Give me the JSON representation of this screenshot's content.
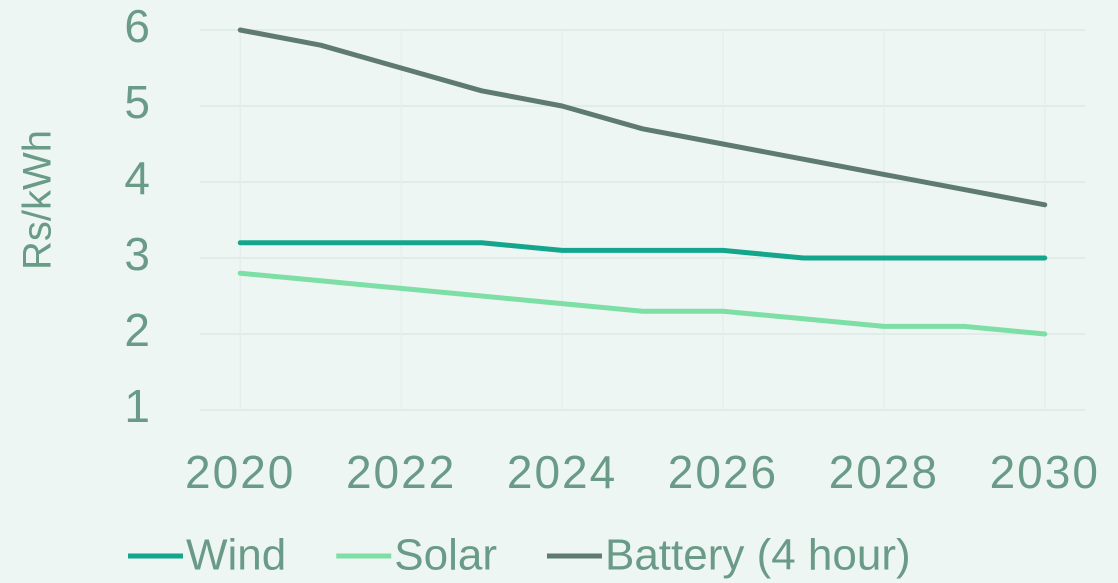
{
  "chart_data": {
    "type": "line",
    "y_label": "Rs/kWh",
    "x": [
      2020,
      2021,
      2022,
      2023,
      2024,
      2025,
      2026,
      2027,
      2028,
      2029,
      2030
    ],
    "series": [
      {
        "name": "Wind",
        "color": "#13a68d",
        "values": [
          3.2,
          3.2,
          3.2,
          3.2,
          3.1,
          3.1,
          3.1,
          3.0,
          3.0,
          3.0,
          3.0
        ]
      },
      {
        "name": "Solar",
        "color": "#7ddfa6",
        "values": [
          2.8,
          2.7,
          2.6,
          2.5,
          2.4,
          2.3,
          2.3,
          2.2,
          2.1,
          2.1,
          2.0
        ]
      },
      {
        "name": "Battery (4 hour)",
        "color": "#5f7b71",
        "values": [
          6.0,
          5.8,
          5.5,
          5.2,
          5.0,
          4.7,
          4.5,
          4.3,
          4.1,
          3.9,
          3.7
        ]
      }
    ],
    "xlim": [
      2019.5,
      2030.5
    ],
    "xticks": [
      2020,
      2022,
      2024,
      2026,
      2028,
      2030
    ],
    "ylim": [
      1,
      6
    ],
    "yticks": [
      1,
      2,
      3,
      4,
      5,
      6
    ],
    "grid": true,
    "legend": "bottom"
  }
}
